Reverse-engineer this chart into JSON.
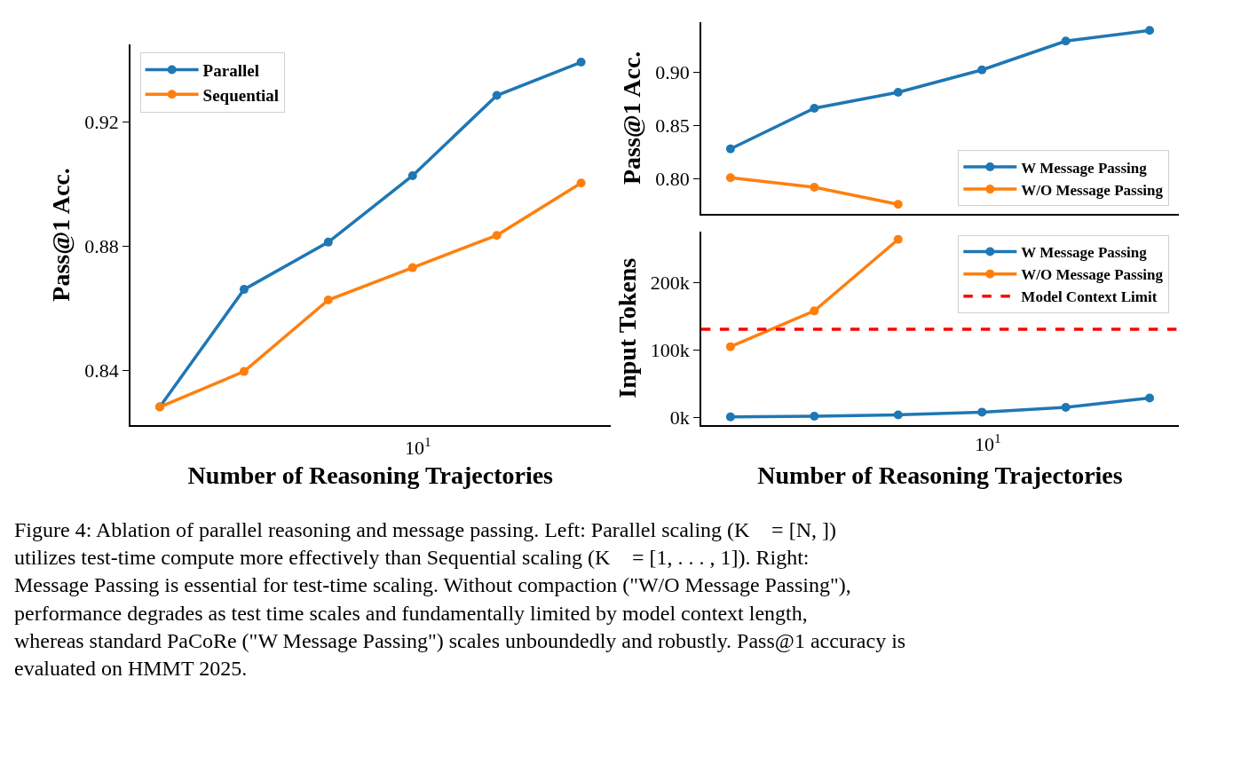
{
  "chart_data": [
    {
      "type": "line",
      "xlabel": "Number of Reasoning Trajectories",
      "ylabel": "Pass@1 Acc.",
      "categories": [
        null,
        null,
        null,
        null,
        null,
        null
      ],
      "ylim": [
        0.8225,
        0.9449
      ],
      "yticks": [
        0.84,
        0.88,
        0.92
      ],
      "legend": "top left",
      "marker": "circle",
      "line_style": "solid",
      "series": [
        {
          "name": "Parallel",
          "color": "#1f77b4",
          "values": [
            0.8283,
            0.8661,
            0.8813,
            0.9027,
            0.9285,
            0.9392
          ]
        },
        {
          "name": "Sequential",
          "color": "#ff7f0e",
          "values": [
            0.8283,
            0.8397,
            0.8627,
            0.8731,
            0.8835,
            0.9003
          ]
        }
      ],
      "annotations": [
        "10$^{1}$",
        "Figure 4: Ablation of parallel reasoning and message passing. Left: Parallel scaling (K⃗ = [N, ]) utilizes test-time compute more effectively than Sequential scaling (K⃗ = [1, . . . , 1]). Right: Message Passing is essential for test-time scaling. Without compaction (\"W/O Message Passing\"), performance degrades as test time scales and fundamentally limited by model context length, whereas standard PaCoRe (\"W Message Passing\") scales unboundedly and robustly. Pass@1 accuracy is evaluated on HMMT 2025."
      ]
    },
    {
      "type": "line",
      "ylabel": "Pass@1 Acc.",
      "categories": [
        null,
        null,
        null,
        null,
        null,
        null
      ],
      "tick_labels": "y",
      "ylim": [
        0.767,
        0.947
      ],
      "yticks": [
        {
          "value": 0.8,
          "label": "0.80"
        },
        {
          "value": 0.85,
          "label": "0.85"
        },
        {
          "value": 0.9,
          "label": "0.90"
        }
      ],
      "legend": "bottom right",
      "marker": "circle",
      "line_style": "solid",
      "series": [
        {
          "name": "W Message Passing",
          "color": "#1f77b4",
          "values": [
            0.828,
            0.866,
            0.881,
            0.902,
            0.929,
            0.939
          ]
        },
        {
          "name": "W/O Message Passing",
          "color": "#ff7f0e",
          "values": [
            0.801,
            0.792,
            0.776,
            null,
            null,
            null
          ]
        }
      ]
    },
    {
      "type": "line",
      "xlabel": "Number of Reasoning Trajectories",
      "ylabel": "Input Tokens",
      "categories": [
        null,
        null,
        null,
        null,
        null,
        null
      ],
      "ylim": [
        -11000,
        276000
      ],
      "yticks": [
        {
          "value": 0,
          "label": "0k"
        },
        {
          "value": 100000,
          "label": "100k"
        },
        {
          "value": 200000,
          "label": "200k"
        }
      ],
      "legend": "top right",
      "marker": "circle",
      "line_style": "solid",
      "series": [
        {
          "name": "W Message Passing",
          "color": "#1f77b4",
          "values": [
            1000,
            2000,
            4000,
            8000,
            15000,
            29000
          ]
        },
        {
          "name": "W/O Message Passing",
          "color": "#ff7f0e",
          "values": [
            105000,
            158000,
            264000,
            null,
            null,
            null
          ]
        }
      ],
      "ref_lines": [
        {
          "axis": "y",
          "value": 131000,
          "label": "Model Context Limit",
          "color": "#ff0000",
          "line_style": "dashed"
        }
      ],
      "annotations": [
        "10$^{1}$"
      ]
    }
  ]
}
